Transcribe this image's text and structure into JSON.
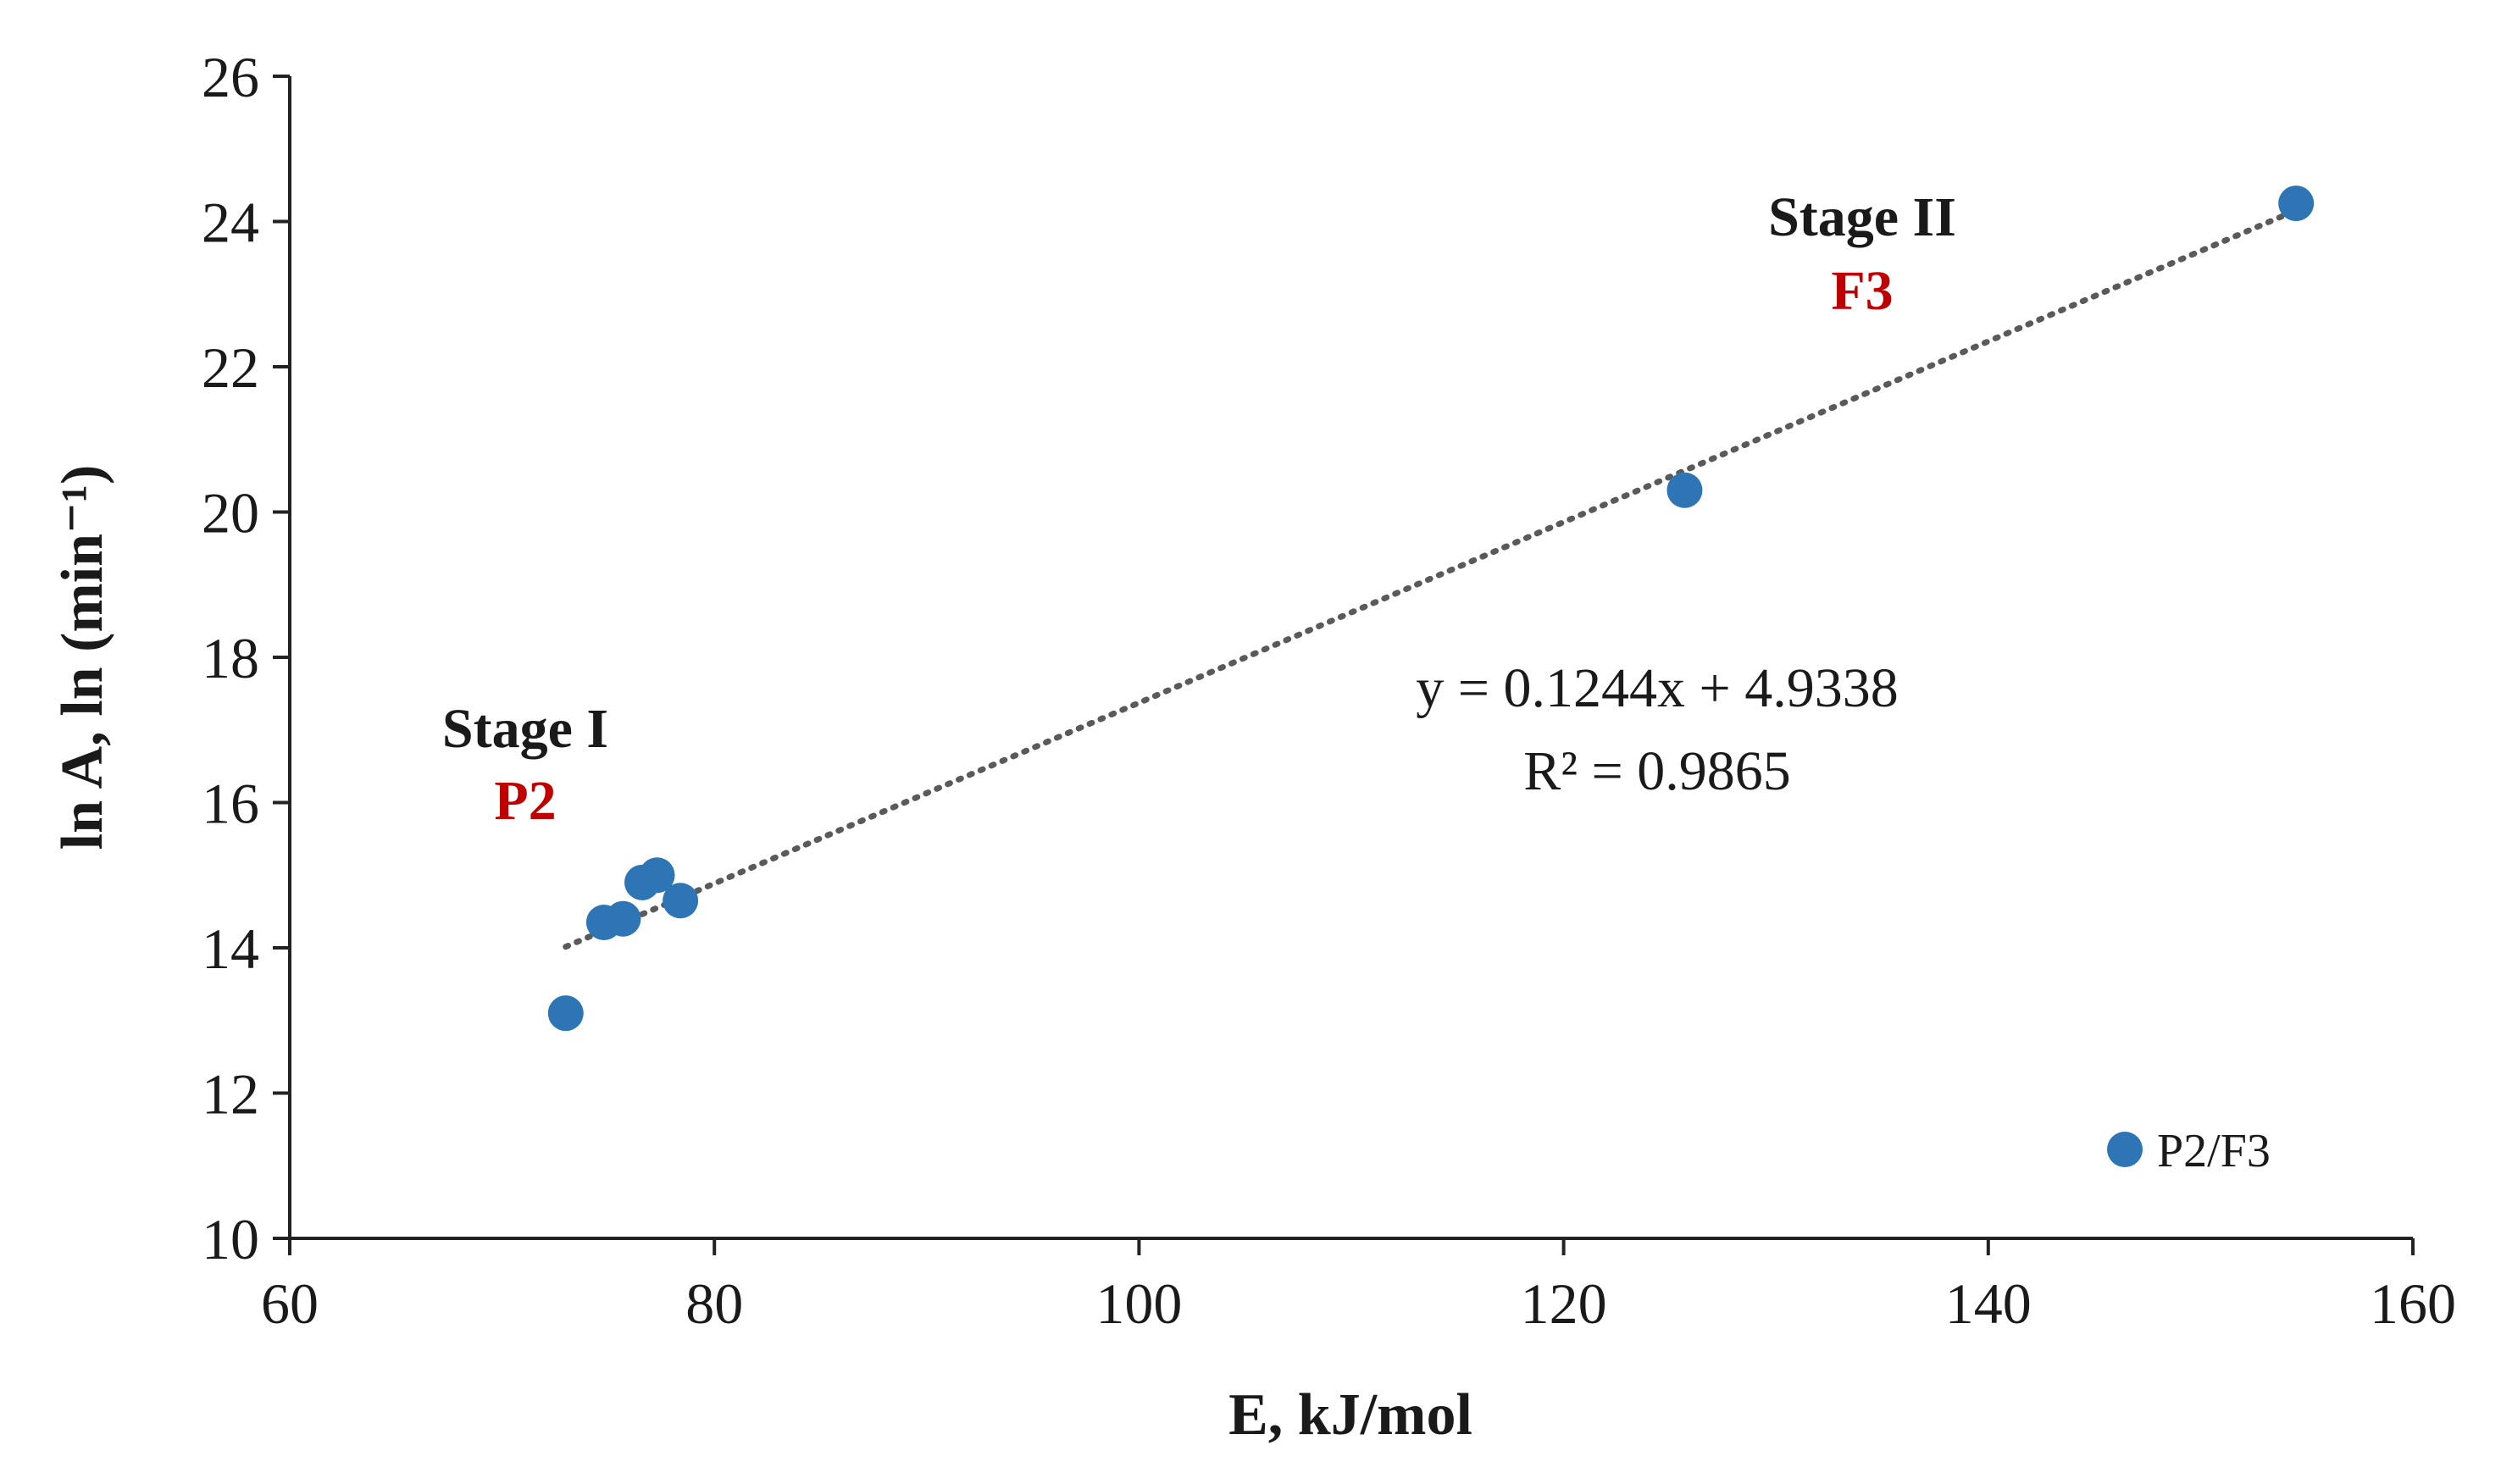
{
  "chart_data": {
    "type": "scatter",
    "xlabel": "E, kJ/mol",
    "ylabel": "ln A, ln (min⁻¹)",
    "xlim": [
      60,
      160
    ],
    "ylim": [
      10,
      26
    ],
    "x_ticks": [
      60,
      80,
      100,
      120,
      140,
      160
    ],
    "y_ticks": [
      10,
      12,
      14,
      16,
      18,
      20,
      22,
      24,
      26
    ],
    "x_tick_labels": [
      "60",
      "80",
      "100",
      "120",
      "140",
      "160"
    ],
    "y_tick_labels": [
      "10",
      "12",
      "14",
      "16",
      "18",
      "20",
      "22",
      "24",
      "26"
    ],
    "grid": false,
    "legend_position": "bottom-right",
    "series": [
      {
        "name": "P2/F3",
        "color": "#2e75b6",
        "points": [
          {
            "x": 73.0,
            "y": 13.1
          },
          {
            "x": 74.8,
            "y": 14.35
          },
          {
            "x": 75.7,
            "y": 14.4
          },
          {
            "x": 76.6,
            "y": 14.9
          },
          {
            "x": 77.3,
            "y": 15.0
          },
          {
            "x": 78.4,
            "y": 14.65
          },
          {
            "x": 125.7,
            "y": 20.3
          },
          {
            "x": 154.5,
            "y": 24.25
          }
        ]
      }
    ],
    "trendline": {
      "type": "linear",
      "style": "dotted",
      "color": "#5a5a5a",
      "slope": 0.1244,
      "intercept": 4.9338,
      "x_range": [
        73.0,
        154.5
      ],
      "equation": "y = 0.1244x + 4.9338",
      "r_squared": "R² = 0.9865"
    },
    "annotations": [
      {
        "stage": "Stage I",
        "sample": "P2",
        "sample_color": "#c00000"
      },
      {
        "stage": "Stage II",
        "sample": "F3",
        "sample_color": "#c00000"
      }
    ]
  }
}
